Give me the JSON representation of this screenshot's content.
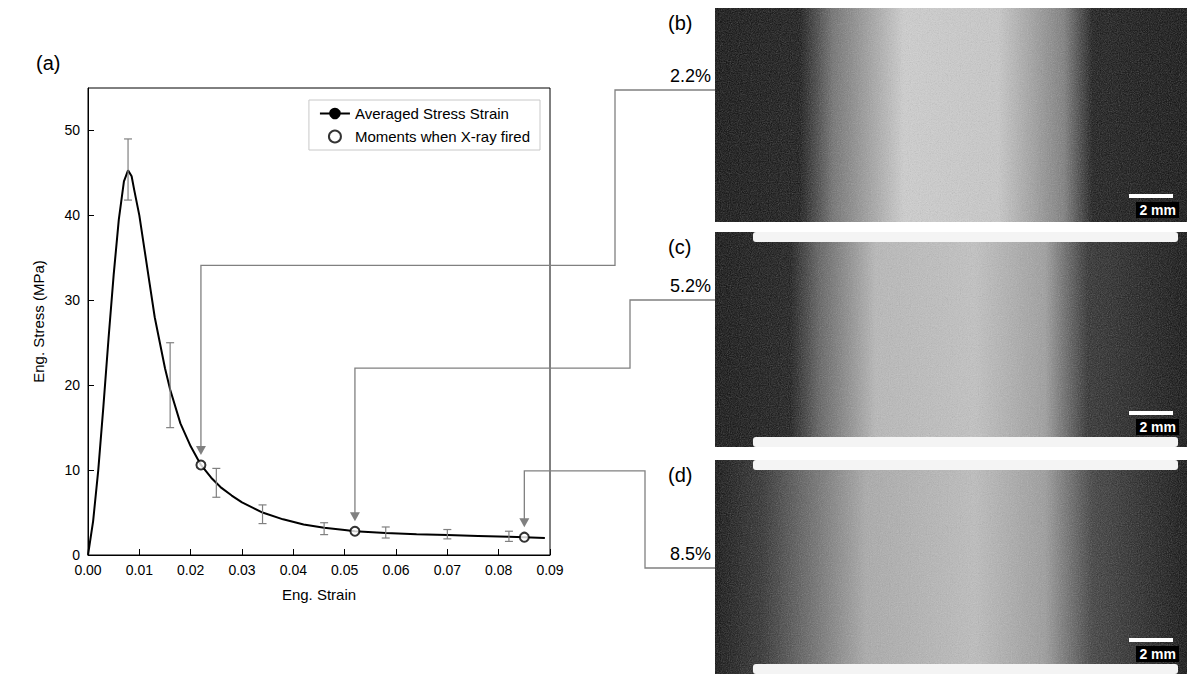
{
  "chart_data": {
    "type": "line",
    "panel_label": "(a)",
    "x_label": "Eng. Strain",
    "y_label": "Eng. Stress (MPa)",
    "xlim": [
      0,
      0.09
    ],
    "xticks": [
      {
        "value": 0,
        "label": "0.00"
      },
      {
        "value": 0.01,
        "label": "0.01"
      },
      {
        "value": 0.02,
        "label": "0.02"
      },
      {
        "value": 0.03,
        "label": "0.03"
      },
      {
        "value": 0.04,
        "label": "0.04"
      },
      {
        "value": 0.05,
        "label": "0.05"
      },
      {
        "value": 0.06,
        "label": "0.06"
      },
      {
        "value": 0.07,
        "label": "0.07"
      },
      {
        "value": 0.08,
        "label": "0.08"
      },
      {
        "value": 0.09,
        "label": "0.09"
      }
    ],
    "ylim": [
      0,
      55
    ],
    "yticks": [
      0,
      10,
      20,
      30,
      40,
      50
    ],
    "grid": false,
    "legend": "upper right",
    "series": [
      {
        "name": "Averaged Stress Strain",
        "type": "line",
        "color": "#000000",
        "marker": "none",
        "line_style": "solid",
        "x": [
          0,
          0.001,
          0.002,
          0.003,
          0.004,
          0.005,
          0.006,
          0.007,
          0.0078,
          0.0085,
          0.009,
          0.01,
          0.011,
          0.012,
          0.013,
          0.014,
          0.015,
          0.016,
          0.018,
          0.02,
          0.022,
          0.024,
          0.026,
          0.028,
          0.03,
          0.034,
          0.038,
          0.042,
          0.046,
          0.05,
          0.052,
          0.058,
          0.064,
          0.07,
          0.076,
          0.082,
          0.085,
          0.089
        ],
        "values": [
          0,
          4,
          10,
          17.5,
          25.5,
          33,
          39.5,
          44,
          45.3,
          44.6,
          43,
          40,
          36,
          32,
          28,
          25,
          22,
          19.5,
          15.5,
          12.8,
          10.6,
          9.1,
          7.9,
          7.0,
          6.2,
          5.0,
          4.2,
          3.6,
          3.2,
          2.95,
          2.8,
          2.6,
          2.45,
          2.35,
          2.25,
          2.15,
          2.1,
          2.0
        ]
      },
      {
        "name": "Moments when X-ray fired",
        "type": "scatter",
        "color": "#000000",
        "marker": "open_circle",
        "x": [
          0.022,
          0.052,
          0.085
        ],
        "values": [
          10.6,
          2.8,
          2.1
        ]
      }
    ],
    "error_bars": {
      "color": "#808080",
      "x": [
        0.0078,
        0.016,
        0.025,
        0.034,
        0.046,
        0.058,
        0.07,
        0.082
      ],
      "low": [
        41.8,
        15,
        6.8,
        3.7,
        2.4,
        2.0,
        1.9,
        1.6
      ],
      "high": [
        49,
        25,
        10.2,
        5.9,
        3.8,
        3.3,
        3.0,
        2.8
      ]
    }
  },
  "images": [
    {
      "label": "(b)",
      "strain_label": "2.2%",
      "scale_bar": "2 mm"
    },
    {
      "label": "(c)",
      "strain_label": "5.2%",
      "scale_bar": "2 mm"
    },
    {
      "label": "(d)",
      "strain_label": "8.5%",
      "scale_bar": "2 mm"
    }
  ]
}
